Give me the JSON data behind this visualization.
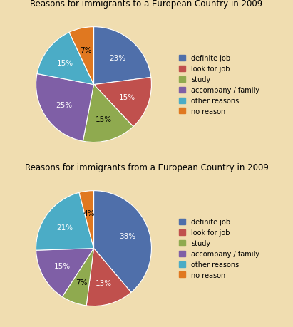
{
  "chart1": {
    "title": "Reasons for immigrants to a European Country in 2009",
    "values": [
      23,
      15,
      15,
      25,
      15,
      7
    ],
    "colors": [
      "#4f6faa",
      "#c0504d",
      "#8faa4f",
      "#7f5fa6",
      "#4bacc6",
      "#e07820"
    ],
    "startangle": 90,
    "counterclock": false,
    "pct_labels": [
      "23%",
      "15%",
      "15%",
      "25%",
      "15%",
      "7%"
    ],
    "label_colors": [
      "white",
      "white",
      "black",
      "white",
      "white",
      "black"
    ]
  },
  "chart2": {
    "title": "Reasons for immigrants from a European Country in 2009",
    "values": [
      38,
      13,
      7,
      15,
      21,
      4
    ],
    "colors": [
      "#4f6faa",
      "#c0504d",
      "#8faa4f",
      "#7f5fa6",
      "#4bacc6",
      "#e07820"
    ],
    "startangle": 90,
    "counterclock": false,
    "pct_labels": [
      "38%",
      "13%",
      "7%",
      "15%",
      "21%",
      "4%"
    ],
    "label_colors": [
      "white",
      "white",
      "black",
      "white",
      "white",
      "black"
    ]
  },
  "background_color": "#f0ddb0",
  "panel_color": "#f5e8c0",
  "legend_labels": [
    "definite job",
    "look for job",
    "study",
    "accompany / family",
    "other reasons",
    "no reason"
  ],
  "legend_colors": [
    "#4f6faa",
    "#c0504d",
    "#8faa4f",
    "#7f5fa6",
    "#4bacc6",
    "#e07820"
  ],
  "title_fontsize": 8.5,
  "label_fontsize": 7.5,
  "legend_fontsize": 7.0
}
